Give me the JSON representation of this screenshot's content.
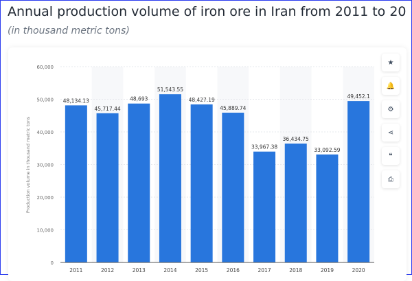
{
  "header": {
    "title": "Annual production volume of iron ore in Iran from 2011 to 20",
    "subtitle": "(in thousand metric tons)"
  },
  "toolbar": [
    {
      "name": "star-icon",
      "glyph": "★"
    },
    {
      "name": "bell-icon",
      "glyph": "🔔"
    },
    {
      "name": "gear-icon",
      "glyph": "⚙"
    },
    {
      "name": "share-icon",
      "glyph": "⋖"
    },
    {
      "name": "quote-icon",
      "glyph": "❝"
    },
    {
      "name": "print-icon",
      "glyph": "⎙"
    }
  ],
  "chart_data": {
    "type": "bar",
    "categories": [
      "2011",
      "2012",
      "2013",
      "2014",
      "2015",
      "2016",
      "2017",
      "2018",
      "2019",
      "2020"
    ],
    "values": [
      48134.13,
      45717.44,
      48693,
      51543.55,
      48427.19,
      45889.74,
      33967.38,
      36434.75,
      33092.59,
      49452.1
    ],
    "data_labels": [
      "48,134.13",
      "45,717.44",
      "48,693",
      "51,543.55",
      "48,427.19",
      "45,889.74",
      "33,967.38",
      "36,434.75",
      "33,092.59",
      "49,452.1"
    ],
    "ylabel": "Production volume in thousand metric tons",
    "ylim": [
      0,
      60000
    ],
    "yticks": [
      0,
      10000,
      20000,
      30000,
      40000,
      50000,
      60000
    ],
    "ytick_labels": [
      "0",
      "10,000",
      "20,000",
      "30,000",
      "40,000",
      "50,000",
      "60,000"
    ],
    "grid": true,
    "bar_color": "#2876dd"
  }
}
